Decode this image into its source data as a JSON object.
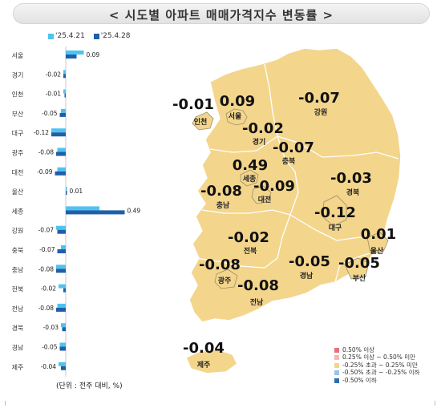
{
  "title": "< 시도별 아파트 매매가격지수 변동률 >",
  "unit_note": "(단위 : 전주 대비, %)",
  "colors": {
    "series1": "#4fc3ef",
    "series2": "#1f5fa8",
    "map_fill": "#f3d58c",
    "map_stroke": "#ffffff"
  },
  "chart_data": {
    "type": "bar",
    "orientation": "horizontal",
    "series": [
      {
        "name": "'25.4.21",
        "values": [
          0.15,
          -0.02,
          -0.02,
          -0.04,
          -0.12,
          -0.07,
          -0.07,
          0.01,
          0.28,
          -0.08,
          -0.04,
          -0.08,
          -0.06,
          -0.07,
          -0.04,
          -0.05,
          -0.06
        ]
      },
      {
        "name": "'25.4.28",
        "values": [
          0.09,
          -0.02,
          -0.01,
          -0.05,
          -0.12,
          -0.08,
          -0.09,
          0.01,
          0.49,
          -0.07,
          -0.07,
          -0.08,
          -0.02,
          -0.08,
          -0.03,
          -0.05,
          -0.04
        ]
      }
    ],
    "categories": [
      "서울",
      "경기",
      "인천",
      "부산",
      "대구",
      "광주",
      "대전",
      "울산",
      "세종",
      "강원",
      "충북",
      "충남",
      "전북",
      "전남",
      "경북",
      "경남",
      "제주"
    ],
    "value_labels": [
      "0.09",
      "-0.02",
      "-0.01",
      "-0.05",
      "-0.12",
      "-0.08",
      "-0.09",
      "0.01",
      "0.49",
      "-0.07",
      "-0.07",
      "-0.08",
      "-0.02",
      "-0.08",
      "-0.03",
      "-0.05",
      "-0.04"
    ]
  },
  "map": {
    "regions": [
      {
        "name": "인천",
        "value": "-0.01"
      },
      {
        "name": "서울",
        "value": "0.09"
      },
      {
        "name": "경기",
        "value": "-0.02"
      },
      {
        "name": "강원",
        "value": "-0.07"
      },
      {
        "name": "충북",
        "value": "-0.07"
      },
      {
        "name": "세종",
        "value": "0.49"
      },
      {
        "name": "대전",
        "value": "-0.09"
      },
      {
        "name": "충남",
        "value": "-0.08"
      },
      {
        "name": "경북",
        "value": "-0.03"
      },
      {
        "name": "대구",
        "value": "-0.12"
      },
      {
        "name": "전북",
        "value": "-0.02"
      },
      {
        "name": "울산",
        "value": "0.01"
      },
      {
        "name": "광주",
        "value": "-0.08"
      },
      {
        "name": "경남",
        "value": "-0.05"
      },
      {
        "name": "부산",
        "value": "-0.05"
      },
      {
        "name": "전남",
        "value": "-0.08"
      },
      {
        "name": "제주",
        "value": "-0.04"
      }
    ],
    "legend": [
      {
        "label": "0.50% 이상",
        "color": "#e8707a"
      },
      {
        "label": "0.25% 이상 ~ 0.50% 미만",
        "color": "#f5b8b0"
      },
      {
        "label": "-0.25% 초과 ~ 0.25% 미만",
        "color": "#f3d58c"
      },
      {
        "label": "-0.50% 초과 ~ -0.25% 이하",
        "color": "#9fc3e8"
      },
      {
        "label": "-0.50% 이하",
        "color": "#2f6db5"
      }
    ]
  }
}
